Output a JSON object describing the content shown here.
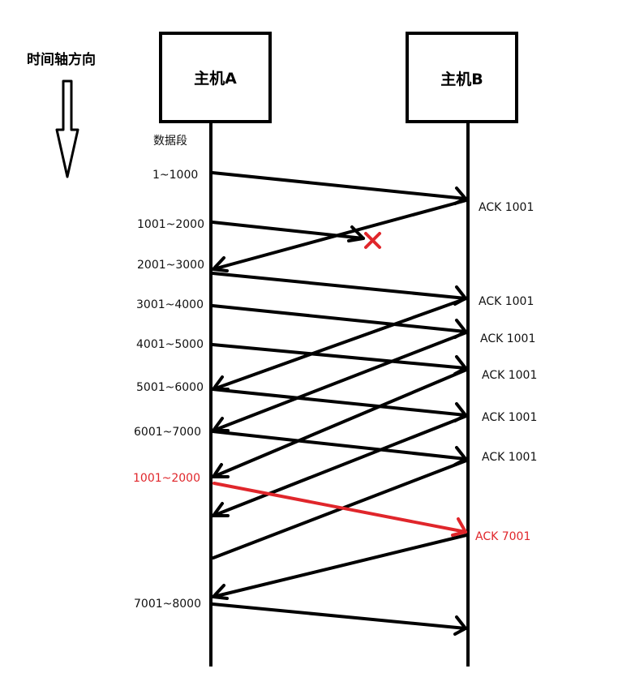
{
  "axis": {
    "title": "时间轴方向"
  },
  "hosts": {
    "a": "主机A",
    "b": "主机B"
  },
  "column_header": "数据段",
  "segments": [
    "1~1000",
    "1001~2000",
    "2001~3000",
    "3001~4000",
    "4001~5000",
    "5001~6000",
    "6001~7000",
    "1001~2000",
    "7001~8000"
  ],
  "acks": [
    "ACK 1001",
    "ACK 1001",
    "ACK 1001",
    "ACK 1001",
    "ACK 1001",
    "ACK 1001",
    "ACK 7001"
  ],
  "colors": {
    "line": "#000000",
    "highlight": "#e0262b"
  }
}
